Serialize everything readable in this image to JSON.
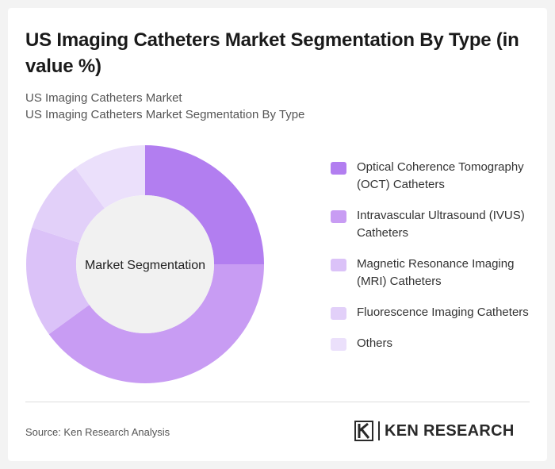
{
  "header": {
    "title": "US Imaging Catheters Market Segmentation By Type (in value %)",
    "subtitle_line1": "US Imaging Catheters Market",
    "subtitle_line2": "US Imaging Catheters Market Segmentation By Type"
  },
  "chart_data": {
    "type": "pie",
    "style": "donut",
    "center_label": "Market Segmentation",
    "categories": [
      "Optical Coherence Tomography (OCT) Catheters",
      "Intravascular Ultrasound (IVUS) Catheters",
      "Magnetic Resonance Imaging (MRI) Catheters",
      "Fluorescence Imaging Catheters",
      "Others"
    ],
    "values": [
      25,
      40,
      15,
      10,
      10
    ],
    "colors": [
      "#b27ef0",
      "#c89cf3",
      "#dbc2f8",
      "#e2d0f9",
      "#ebe0fb"
    ],
    "legend_position": "right"
  },
  "footer": {
    "source": "Source: Ken Research Analysis",
    "logo_text": "KEN RESEARCH",
    "logo_icon": "ken-research-k-icon"
  }
}
